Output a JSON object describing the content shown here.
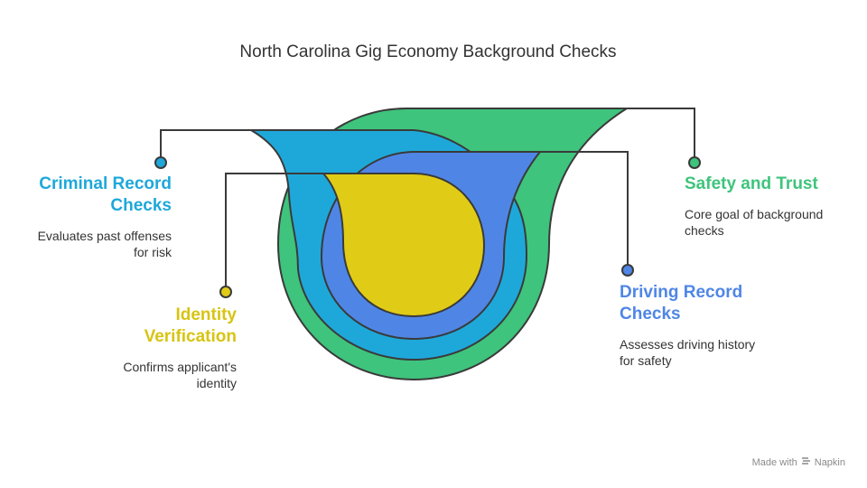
{
  "title": "North Carolina Gig Economy Background Checks",
  "colors": {
    "criminal": "#1ea8da",
    "safety": "#3ec47c",
    "identity": "#e0cc16",
    "driving": "#4f86e6",
    "line": "#3a3a3a"
  },
  "items": {
    "criminal": {
      "label": "Criminal Record Checks",
      "line1": "Criminal Record",
      "line2": "Checks",
      "desc1": "Evaluates past offenses",
      "desc2": "for risk"
    },
    "identity": {
      "label": "Identity Verification",
      "line1": "Identity",
      "line2": "Verification",
      "desc1": "Confirms applicant's",
      "desc2": "identity"
    },
    "safety": {
      "label": "Safety and Trust",
      "line1": "Safety and Trust",
      "desc1": "Core goal of background",
      "desc2": "checks"
    },
    "driving": {
      "label": "Driving Record Checks",
      "line1": "Driving Record",
      "line2": "Checks",
      "desc1": "Assesses driving history",
      "desc2": "for safety"
    }
  },
  "footer": {
    "made_with": "Made with",
    "brand": "Napkin",
    "logo_icon": "napkin-logo-icon"
  }
}
